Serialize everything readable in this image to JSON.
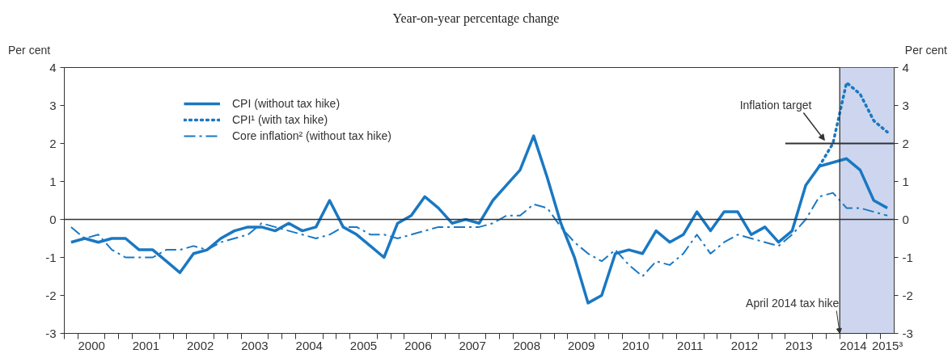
{
  "chart_data": {
    "type": "line",
    "title": "Year-on-year percentage change",
    "ylabel": "Per cent",
    "y2label": "Per cent",
    "x": [
      2000.125,
      2000.375,
      2000.625,
      2000.875,
      2001.125,
      2001.375,
      2001.625,
      2001.875,
      2002.125,
      2002.375,
      2002.625,
      2002.875,
      2003.125,
      2003.375,
      2003.625,
      2003.875,
      2004.125,
      2004.375,
      2004.625,
      2004.875,
      2005.125,
      2005.375,
      2005.625,
      2005.875,
      2006.125,
      2006.375,
      2006.625,
      2006.875,
      2007.125,
      2007.375,
      2007.625,
      2007.875,
      2008.125,
      2008.375,
      2008.625,
      2008.875,
      2009.125,
      2009.375,
      2009.625,
      2009.875,
      2010.125,
      2010.375,
      2010.625,
      2010.875,
      2011.125,
      2011.375,
      2011.625,
      2011.875,
      2012.125,
      2012.375,
      2012.625,
      2012.875,
      2013.125,
      2013.375,
      2013.625,
      2013.875,
      2014.125,
      2014.375,
      2014.625,
      2014.875,
      2015.125
    ],
    "series": [
      {
        "name": "CPI (without tax hike)",
        "color": "#1a78c2",
        "line_style": "solid",
        "values": [
          -0.6,
          -0.5,
          -0.6,
          -0.5,
          -0.5,
          -0.8,
          -0.8,
          -1.1,
          -1.4,
          -0.9,
          -0.8,
          -0.5,
          -0.3,
          -0.2,
          -0.2,
          -0.3,
          -0.1,
          -0.3,
          -0.2,
          0.5,
          -0.2,
          -0.4,
          -0.7,
          -1.0,
          -0.1,
          0.1,
          0.6,
          0.3,
          -0.1,
          0.0,
          -0.1,
          0.5,
          0.9,
          1.3,
          2.2,
          1.1,
          -0.1,
          -1.0,
          -2.2,
          -2.0,
          -0.9,
          -0.8,
          -0.9,
          -0.3,
          -0.6,
          -0.4,
          0.2,
          -0.3,
          0.2,
          0.2,
          -0.4,
          -0.2,
          -0.6,
          -0.3,
          0.9,
          1.4,
          1.5,
          1.6,
          1.3,
          0.5,
          0.3
        ]
      },
      {
        "name": "CPI¹ (with tax hike)",
        "color": "#1a78c2",
        "line_style": "dotted",
        "x": [
          2013.875,
          2014.125,
          2014.375,
          2014.625,
          2014.875,
          2015.125
        ],
        "values": [
          1.4,
          2.0,
          3.6,
          3.3,
          2.6,
          2.3
        ]
      },
      {
        "name": "Core inflation² (without tax hike)",
        "color": "#1a78c2",
        "line_style": "dashdot",
        "values": [
          -0.2,
          -0.5,
          -0.4,
          -0.8,
          -1.0,
          -1.0,
          -1.0,
          -0.8,
          -0.8,
          -0.7,
          -0.8,
          -0.6,
          -0.5,
          -0.4,
          -0.1,
          -0.2,
          -0.3,
          -0.4,
          -0.5,
          -0.4,
          -0.2,
          -0.2,
          -0.4,
          -0.4,
          -0.5,
          -0.4,
          -0.3,
          -0.2,
          -0.2,
          -0.2,
          -0.2,
          -0.1,
          0.1,
          0.1,
          0.4,
          0.3,
          -0.2,
          -0.6,
          -0.9,
          -1.1,
          -0.8,
          -1.2,
          -1.5,
          -1.1,
          -1.2,
          -0.9,
          -0.4,
          -0.9,
          -0.6,
          -0.4,
          -0.5,
          -0.6,
          -0.7,
          -0.4,
          0.0,
          0.6,
          0.7,
          0.3,
          0.3,
          0.2,
          0.1
        ]
      },
      {
        "color": "#333333",
        "line_style": "solid",
        "x": [
          2013.25,
          2015.25
        ],
        "values": [
          2,
          2
        ]
      }
    ],
    "xlim": [
      2000,
      2015.25
    ],
    "xticks": [
      {
        "value": 2000,
        "label": null
      },
      {
        "value": 2000.25,
        "label": null
      },
      {
        "value": 2000.5,
        "label": "2000"
      },
      {
        "value": 2000.75,
        "label": null
      },
      {
        "value": 2001,
        "label": null
      },
      {
        "value": 2001.25,
        "label": null
      },
      {
        "value": 2001.5,
        "label": "2001"
      },
      {
        "value": 2001.75,
        "label": null
      },
      {
        "value": 2002,
        "label": null
      },
      {
        "value": 2002.25,
        "label": null
      },
      {
        "value": 2002.5,
        "label": "2002"
      },
      {
        "value": 2002.75,
        "label": null
      },
      {
        "value": 2003,
        "label": null
      },
      {
        "value": 2003.25,
        "label": null
      },
      {
        "value": 2003.5,
        "label": "2003"
      },
      {
        "value": 2003.75,
        "label": null
      },
      {
        "value": 2004,
        "label": null
      },
      {
        "value": 2004.25,
        "label": null
      },
      {
        "value": 2004.5,
        "label": "2004"
      },
      {
        "value": 2004.75,
        "label": null
      },
      {
        "value": 2005,
        "label": null
      },
      {
        "value": 2005.25,
        "label": null
      },
      {
        "value": 2005.5,
        "label": "2005"
      },
      {
        "value": 2005.75,
        "label": null
      },
      {
        "value": 2006,
        "label": null
      },
      {
        "value": 2006.25,
        "label": null
      },
      {
        "value": 2006.5,
        "label": "2006"
      },
      {
        "value": 2006.75,
        "label": null
      },
      {
        "value": 2007,
        "label": null
      },
      {
        "value": 2007.25,
        "label": null
      },
      {
        "value": 2007.5,
        "label": "2007"
      },
      {
        "value": 2007.75,
        "label": null
      },
      {
        "value": 2008,
        "label": null
      },
      {
        "value": 2008.25,
        "label": null
      },
      {
        "value": 2008.5,
        "label": "2008"
      },
      {
        "value": 2008.75,
        "label": null
      },
      {
        "value": 2009,
        "label": null
      },
      {
        "value": 2009.25,
        "label": null
      },
      {
        "value": 2009.5,
        "label": "2009"
      },
      {
        "value": 2009.75,
        "label": null
      },
      {
        "value": 2010,
        "label": null
      },
      {
        "value": 2010.25,
        "label": null
      },
      {
        "value": 2010.5,
        "label": "2010"
      },
      {
        "value": 2010.75,
        "label": null
      },
      {
        "value": 2011,
        "label": null
      },
      {
        "value": 2011.25,
        "label": null
      },
      {
        "value": 2011.5,
        "label": "2011"
      },
      {
        "value": 2011.75,
        "label": null
      },
      {
        "value": 2012,
        "label": null
      },
      {
        "value": 2012.25,
        "label": null
      },
      {
        "value": 2012.5,
        "label": "2012"
      },
      {
        "value": 2012.75,
        "label": null
      },
      {
        "value": 2013,
        "label": null
      },
      {
        "value": 2013.25,
        "label": null
      },
      {
        "value": 2013.5,
        "label": "2013"
      },
      {
        "value": 2013.75,
        "label": null
      },
      {
        "value": 2014,
        "label": null
      },
      {
        "value": 2014.25,
        "label": null
      },
      {
        "value": 2014.5,
        "label": "2014"
      },
      {
        "value": 2014.75,
        "label": null
      },
      {
        "value": 2015,
        "label": null
      },
      {
        "value": 2015.125,
        "label": "2015³"
      }
    ],
    "ylim": [
      -3,
      4
    ],
    "yticks": [
      -3,
      -2,
      -1,
      0,
      1,
      2,
      3,
      4
    ],
    "y2lim": [
      -3,
      4
    ],
    "y2ticks": [
      -3,
      -2,
      -1,
      0,
      1,
      2,
      3,
      4
    ],
    "bands": [
      {
        "axis": "x",
        "from": 2014.25,
        "to": 2015.25,
        "color": "#cdd6ee"
      }
    ],
    "ref_lines": [
      {
        "axis": "y",
        "value": 0,
        "color": "#333333"
      },
      {
        "axis": "x",
        "value": 2014.25,
        "label": "April 2014 tax hike",
        "color": "#333333"
      }
    ],
    "annotations": [
      {
        "text": "Inflation target",
        "x": 2014.0,
        "y": 2
      }
    ],
    "legend": "top left",
    "grid": false
  }
}
